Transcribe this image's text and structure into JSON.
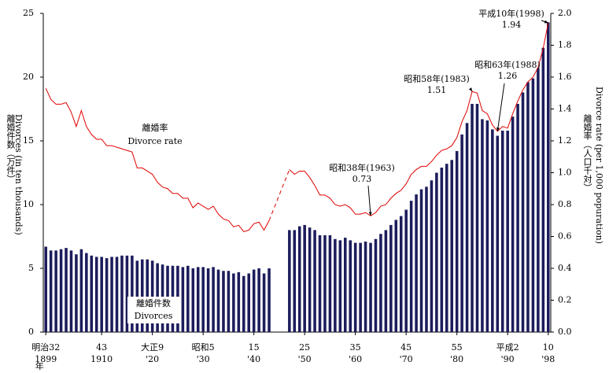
{
  "chart_data": {
    "type": "bar-line",
    "y_label": "離婚件数（万件）",
    "y_label_en": "Divorces (in ten thousands)",
    "y2_label": "離婚率（人口千対）",
    "y2_label_en": "Divorce rate (per 1,000 popuration)",
    "x_unit": "年",
    "x": [
      1899,
      1900,
      1901,
      1902,
      1903,
      1904,
      1905,
      1906,
      1907,
      1908,
      1909,
      1910,
      1911,
      1912,
      1913,
      1914,
      1915,
      1916,
      1917,
      1918,
      1919,
      1920,
      1921,
      1922,
      1923,
      1924,
      1925,
      1926,
      1927,
      1928,
      1929,
      1930,
      1931,
      1932,
      1933,
      1934,
      1935,
      1936,
      1937,
      1938,
      1939,
      1940,
      1941,
      1942,
      1943,
      1944,
      1945,
      1946,
      1947,
      1948,
      1949,
      1950,
      1951,
      1952,
      1953,
      1954,
      1955,
      1956,
      1957,
      1958,
      1959,
      1960,
      1961,
      1962,
      1963,
      1964,
      1965,
      1966,
      1967,
      1968,
      1969,
      1970,
      1971,
      1972,
      1973,
      1974,
      1975,
      1976,
      1977,
      1978,
      1979,
      1980,
      1981,
      1982,
      1983,
      1984,
      1985,
      1986,
      1987,
      1988,
      1989,
      1990,
      1991,
      1992,
      1993,
      1994,
      1995,
      1996,
      1997,
      1998
    ],
    "series": [
      {
        "name": "離婚件数",
        "name_en": "Divorces",
        "type": "bar",
        "color": "#1c1c5c",
        "values": [
          6.7,
          6.4,
          6.4,
          6.5,
          6.6,
          6.4,
          6.1,
          6.5,
          6.2,
          6.0,
          5.9,
          5.9,
          5.8,
          5.9,
          5.9,
          6.0,
          6.0,
          6.0,
          5.6,
          5.7,
          5.7,
          5.6,
          5.4,
          5.3,
          5.2,
          5.2,
          5.2,
          5.1,
          5.2,
          5.0,
          5.1,
          5.1,
          5.0,
          5.1,
          4.9,
          4.8,
          4.8,
          4.6,
          4.7,
          4.4,
          4.6,
          4.9,
          5.0,
          4.6,
          5.0,
          null,
          null,
          null,
          8.0,
          8.0,
          8.3,
          8.4,
          8.2,
          8.0,
          7.6,
          7.6,
          7.6,
          7.3,
          7.2,
          7.4,
          7.2,
          7.0,
          7.0,
          7.1,
          7.0,
          7.3,
          7.7,
          8.0,
          8.4,
          8.8,
          9.1,
          9.6,
          10.3,
          10.8,
          11.2,
          11.4,
          11.9,
          12.5,
          12.9,
          13.2,
          13.5,
          14.2,
          15.5,
          16.4,
          17.9,
          17.9,
          16.7,
          16.6,
          15.9,
          15.4,
          15.8,
          15.8,
          16.9,
          17.9,
          18.8,
          19.6,
          19.9,
          20.7,
          22.3,
          24.3
        ]
      },
      {
        "name": "離婚率",
        "name_en": "Divorce rate",
        "type": "line",
        "axis": "y2",
        "color": "#e00000",
        "values": [
          1.53,
          1.46,
          1.43,
          1.43,
          1.44,
          1.38,
          1.29,
          1.39,
          1.29,
          1.24,
          1.21,
          1.21,
          1.17,
          1.17,
          1.16,
          1.15,
          1.14,
          1.13,
          1.03,
          1.03,
          1.01,
          0.99,
          0.94,
          0.91,
          0.9,
          0.87,
          0.87,
          0.84,
          0.84,
          0.78,
          0.81,
          0.79,
          0.77,
          0.79,
          0.74,
          0.71,
          0.7,
          0.66,
          0.67,
          0.63,
          0.64,
          0.68,
          0.69,
          0.64,
          0.7,
          null,
          null,
          null,
          1.02,
          0.99,
          1.01,
          1.01,
          0.97,
          0.92,
          0.86,
          0.86,
          0.84,
          0.8,
          0.79,
          0.8,
          0.78,
          0.74,
          0.74,
          0.75,
          0.73,
          0.75,
          0.79,
          0.8,
          0.84,
          0.87,
          0.89,
          0.93,
          0.99,
          1.02,
          1.04,
          1.04,
          1.07,
          1.11,
          1.14,
          1.15,
          1.17,
          1.22,
          1.32,
          1.39,
          1.51,
          1.5,
          1.39,
          1.37,
          1.3,
          1.26,
          1.29,
          1.28,
          1.37,
          1.45,
          1.52,
          1.57,
          1.6,
          1.66,
          1.78,
          1.94
        ]
      }
    ],
    "xlim": [
      1898.5,
      1998.5
    ],
    "xticks": [
      {
        "value": 1899,
        "label": "1899"
      },
      {
        "value": 1910,
        "label": "1910"
      },
      {
        "value": 1920,
        "label": "'20"
      },
      {
        "value": 1930,
        "label": "'30"
      },
      {
        "value": 1940,
        "label": "'40"
      },
      {
        "value": 1950,
        "label": "'50"
      },
      {
        "value": 1960,
        "label": "'60"
      },
      {
        "value": 1970,
        "label": "'70"
      },
      {
        "value": 1980,
        "label": "'80"
      },
      {
        "value": 1990,
        "label": "'90"
      },
      {
        "value": 1998,
        "label": "'98"
      }
    ],
    "xtick_era_labels": [
      "明治32",
      "43",
      "大正9",
      "昭和5",
      "15",
      "25",
      "35",
      "45",
      "55",
      "平成2",
      "10"
    ],
    "ylim": [
      0,
      25
    ],
    "yticks": [
      0,
      5,
      10,
      15,
      20,
      25
    ],
    "y2lim": [
      0,
      2
    ],
    "y2ticks": [
      {
        "value": 0,
        "label": "0.0"
      },
      0.2,
      0.4,
      0.6,
      0.8,
      {
        "value": 1,
        "label": "1.0"
      },
      1.2,
      1.4,
      1.6,
      1.8,
      {
        "value": 2,
        "label": "2.0"
      }
    ],
    "annotations": [
      {
        "label": "平成10年(1998)",
        "x": 1998
      },
      {
        "label": "昭和63年(1988)",
        "x": 1988
      },
      {
        "label": "昭和58年(1983)",
        "x": 1983
      },
      {
        "label": "昭和38年(1963)",
        "x": 1963
      }
    ],
    "grid": false
  }
}
